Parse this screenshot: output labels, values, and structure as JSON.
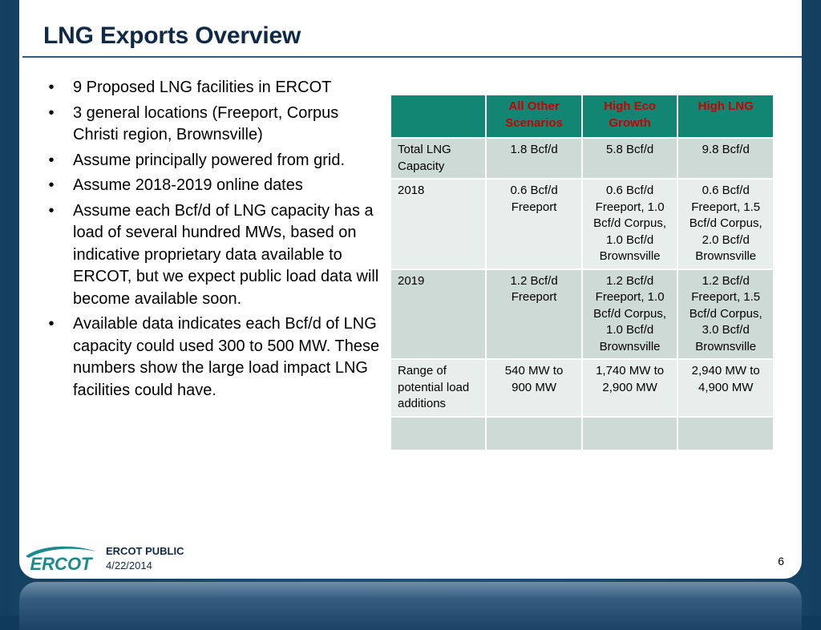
{
  "title": "LNG Exports Overview",
  "bullets": [
    "9 Proposed LNG facilities in ERCOT",
    "3 general locations (Freeport, Corpus Christi region, Brownsville)",
    "Assume principally powered from grid.",
    "Assume 2018-2019 online dates",
    "Assume each Bcf/d of LNG capacity has a load of several hundred MWs, based on indicative proprietary data available to ERCOT, but we expect public load data will become available soon.",
    "Available data indicates each Bcf/d of LNG capacity could used 300 to 500 MW.  These numbers show the large load impact LNG facilities could have."
  ],
  "bullet_glyph": "•",
  "table": {
    "headers": [
      "",
      "All Other Scenarios",
      "High Eco Growth",
      "High LNG"
    ],
    "rows": [
      [
        "Total LNG Capacity",
        "1.8 Bcf/d",
        "5.8 Bcf/d",
        "9.8 Bcf/d"
      ],
      [
        "2018",
        "0.6 Bcf/d Freeport",
        "0.6 Bcf/d Freeport, 1.0 Bcf/d Corpus, 1.0 Bcf/d Brownsville",
        "0.6 Bcf/d Freeport, 1.5 Bcf/d Corpus, 2.0 Bcf/d Brownsville"
      ],
      [
        "2019",
        "1.2 Bcf/d Freeport",
        "1.2 Bcf/d Freeport, 1.0 Bcf/d Corpus, 1.0 Bcf/d Brownsville",
        "1.2 Bcf/d Freeport, 1.5 Bcf/d Corpus, 3.0 Bcf/d Brownsville"
      ],
      [
        "Range of potential load additions",
        "540 MW to 900 MW",
        "1,740 MW to 2,900 MW",
        "2,940 MW to 4,900 MW"
      ],
      [
        "",
        "",
        "",
        ""
      ]
    ]
  },
  "footer": {
    "logo_text": "ERCOT",
    "label": "ERCOT PUBLIC",
    "date": "4/22/2014"
  },
  "page_number": "6",
  "colors": {
    "header_bg": "#128672",
    "header_text": "#cc0000",
    "row_odd": "#cedad5",
    "row_even": "#e8eeeb",
    "title": "#0f2a47",
    "logo_teal": "#1a8a8a"
  }
}
